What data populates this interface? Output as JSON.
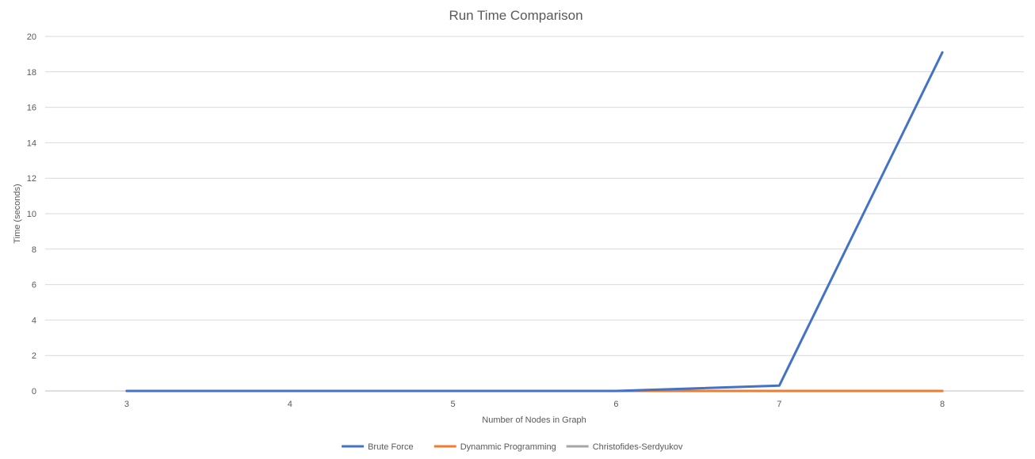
{
  "chart_data": {
    "type": "line",
    "title": "Run Time Comparison",
    "xlabel": "Number of Nodes in Graph",
    "ylabel": "Time (seconds)",
    "categories": [
      "3",
      "4",
      "5",
      "6",
      "7",
      "8"
    ],
    "ylim": [
      0,
      20
    ],
    "yticks": [
      0,
      2,
      4,
      6,
      8,
      10,
      12,
      14,
      16,
      18,
      20
    ],
    "grid": true,
    "legend_position": "bottom",
    "series": [
      {
        "name": "Brute Force",
        "color": "#4472c4",
        "values": [
          0,
          0,
          0,
          0,
          0.3,
          19.1
        ]
      },
      {
        "name": "Dynammic Programming",
        "color": "#ed7d31",
        "values": [
          0,
          0,
          0,
          0,
          0,
          0
        ]
      },
      {
        "name": "Christofides-Serdyukov",
        "color": "#a5a5a5",
        "values": [
          0,
          0,
          0,
          0,
          0,
          0
        ]
      }
    ]
  }
}
